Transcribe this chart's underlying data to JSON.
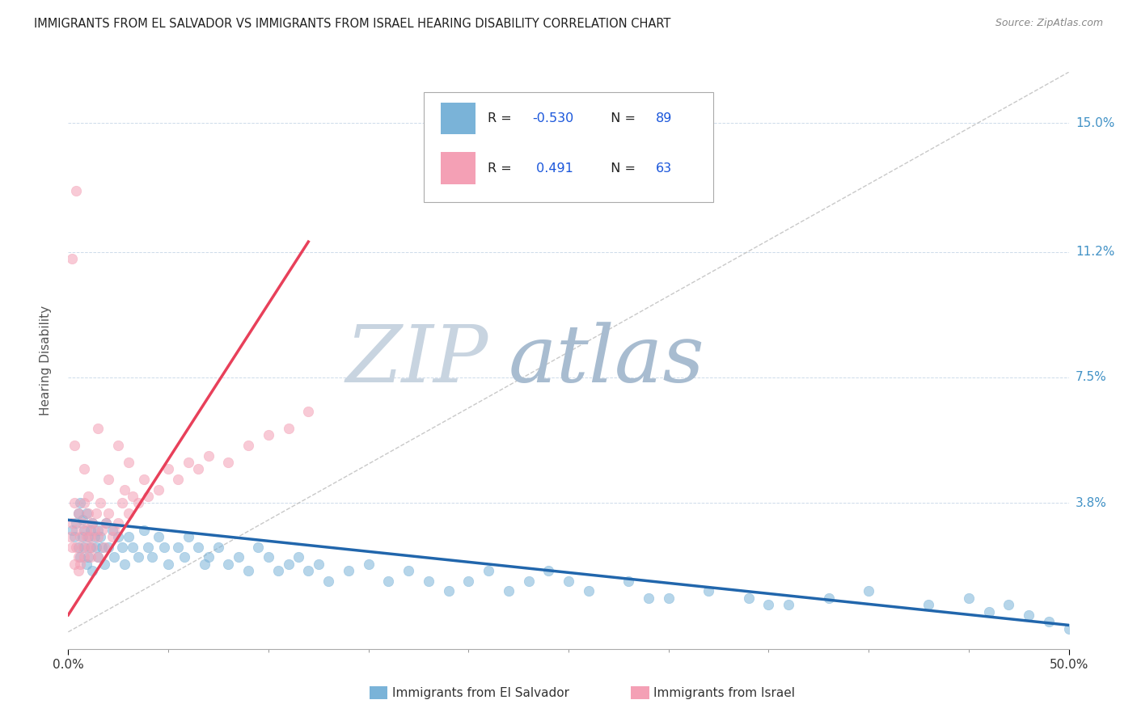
{
  "title": "IMMIGRANTS FROM EL SALVADOR VS IMMIGRANTS FROM ISRAEL HEARING DISABILITY CORRELATION CHART",
  "source": "Source: ZipAtlas.com",
  "xlabel_blue": "Immigrants from El Salvador",
  "xlabel_pink": "Immigrants from Israel",
  "ylabel": "Hearing Disability",
  "xlim": [
    0.0,
    0.5
  ],
  "ylim": [
    -0.005,
    0.165
  ],
  "yticks": [
    0.0,
    0.038,
    0.075,
    0.112,
    0.15
  ],
  "ytick_labels": [
    "",
    "3.8%",
    "7.5%",
    "11.2%",
    "15.0%"
  ],
  "blue_color": "#7ab3d8",
  "pink_color": "#f4a0b5",
  "blue_line_color": "#2166ac",
  "pink_line_color": "#e8405a",
  "grid_color": "#c8d8e8",
  "R_blue": -0.53,
  "N_blue": 89,
  "R_pink": 0.491,
  "N_pink": 63,
  "legend_R_color": "#1a56db",
  "title_color": "#222222",
  "axis_label_color": "#555555",
  "right_tick_color": "#4292c6",
  "watermark_zip_color": "#c8d4e0",
  "watermark_atlas_color": "#a8bcd0",
  "blue_scatter_x": [
    0.002,
    0.003,
    0.004,
    0.005,
    0.005,
    0.006,
    0.006,
    0.007,
    0.007,
    0.008,
    0.008,
    0.009,
    0.009,
    0.01,
    0.01,
    0.011,
    0.011,
    0.012,
    0.012,
    0.013,
    0.014,
    0.015,
    0.015,
    0.016,
    0.017,
    0.018,
    0.019,
    0.02,
    0.022,
    0.023,
    0.025,
    0.027,
    0.028,
    0.03,
    0.032,
    0.035,
    0.038,
    0.04,
    0.042,
    0.045,
    0.048,
    0.05,
    0.055,
    0.058,
    0.06,
    0.065,
    0.068,
    0.07,
    0.075,
    0.08,
    0.085,
    0.09,
    0.095,
    0.1,
    0.105,
    0.11,
    0.115,
    0.12,
    0.125,
    0.13,
    0.14,
    0.15,
    0.16,
    0.17,
    0.18,
    0.19,
    0.2,
    0.21,
    0.22,
    0.23,
    0.24,
    0.26,
    0.28,
    0.3,
    0.32,
    0.34,
    0.36,
    0.38,
    0.4,
    0.43,
    0.45,
    0.46,
    0.47,
    0.48,
    0.49,
    0.5,
    0.35,
    0.25,
    0.29
  ],
  "blue_scatter_y": [
    0.03,
    0.028,
    0.032,
    0.025,
    0.035,
    0.022,
    0.038,
    0.028,
    0.033,
    0.025,
    0.03,
    0.02,
    0.035,
    0.028,
    0.022,
    0.03,
    0.025,
    0.018,
    0.032,
    0.028,
    0.025,
    0.03,
    0.022,
    0.028,
    0.025,
    0.02,
    0.032,
    0.025,
    0.03,
    0.022,
    0.028,
    0.025,
    0.02,
    0.028,
    0.025,
    0.022,
    0.03,
    0.025,
    0.022,
    0.028,
    0.025,
    0.02,
    0.025,
    0.022,
    0.028,
    0.025,
    0.02,
    0.022,
    0.025,
    0.02,
    0.022,
    0.018,
    0.025,
    0.022,
    0.018,
    0.02,
    0.022,
    0.018,
    0.02,
    0.015,
    0.018,
    0.02,
    0.015,
    0.018,
    0.015,
    0.012,
    0.015,
    0.018,
    0.012,
    0.015,
    0.018,
    0.012,
    0.015,
    0.01,
    0.012,
    0.01,
    0.008,
    0.01,
    0.012,
    0.008,
    0.01,
    0.006,
    0.008,
    0.005,
    0.003,
    0.001,
    0.008,
    0.015,
    0.01
  ],
  "pink_scatter_x": [
    0.001,
    0.002,
    0.002,
    0.003,
    0.003,
    0.004,
    0.004,
    0.005,
    0.005,
    0.006,
    0.006,
    0.007,
    0.007,
    0.008,
    0.008,
    0.009,
    0.009,
    0.01,
    0.01,
    0.011,
    0.011,
    0.012,
    0.012,
    0.013,
    0.014,
    0.015,
    0.015,
    0.016,
    0.017,
    0.018,
    0.019,
    0.02,
    0.022,
    0.023,
    0.025,
    0.027,
    0.028,
    0.03,
    0.032,
    0.035,
    0.038,
    0.04,
    0.045,
    0.05,
    0.055,
    0.06,
    0.065,
    0.07,
    0.08,
    0.09,
    0.1,
    0.11,
    0.12,
    0.003,
    0.005,
    0.008,
    0.01,
    0.015,
    0.02,
    0.025,
    0.03,
    0.002,
    0.004
  ],
  "pink_scatter_y": [
    0.028,
    0.025,
    0.032,
    0.02,
    0.038,
    0.025,
    0.03,
    0.022,
    0.035,
    0.028,
    0.02,
    0.032,
    0.025,
    0.038,
    0.022,
    0.03,
    0.028,
    0.025,
    0.035,
    0.022,
    0.028,
    0.032,
    0.025,
    0.03,
    0.035,
    0.028,
    0.022,
    0.038,
    0.03,
    0.025,
    0.032,
    0.035,
    0.028,
    0.03,
    0.032,
    0.038,
    0.042,
    0.035,
    0.04,
    0.038,
    0.045,
    0.04,
    0.042,
    0.048,
    0.045,
    0.05,
    0.048,
    0.052,
    0.05,
    0.055,
    0.058,
    0.06,
    0.065,
    0.055,
    0.018,
    0.048,
    0.04,
    0.06,
    0.045,
    0.055,
    0.05,
    0.11,
    0.13
  ]
}
